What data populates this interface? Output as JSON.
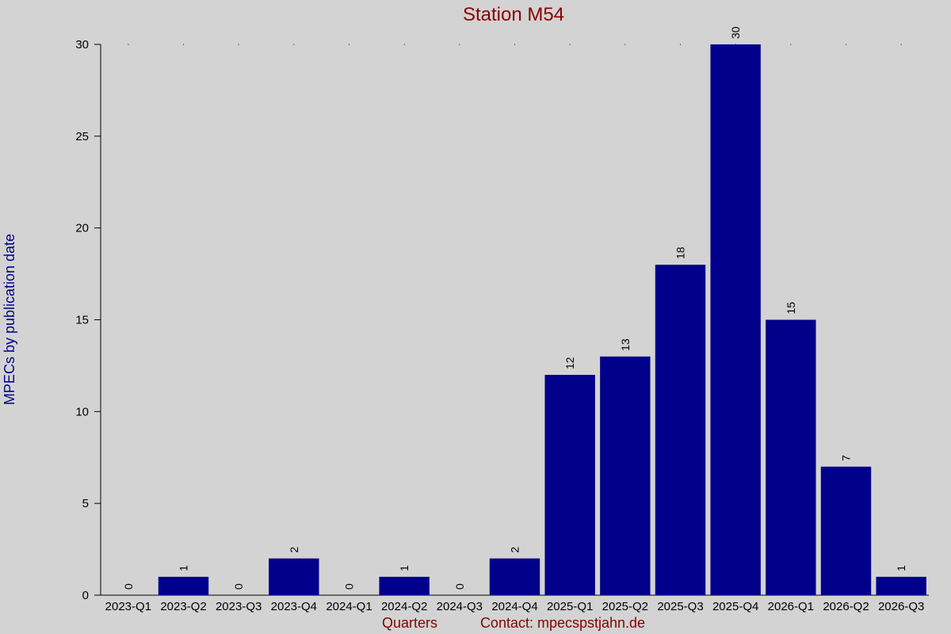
{
  "chart_data": {
    "type": "bar",
    "title": "Station M54",
    "xlabel": "Quarters",
    "ylabel": "MPECs by publication date",
    "contact": "Contact: mpecspstjahn.de",
    "categories": [
      "2023-Q1",
      "2023-Q2",
      "2023-Q3",
      "2023-Q4",
      "2024-Q1",
      "2024-Q2",
      "2024-Q3",
      "2024-Q4",
      "2025-Q1",
      "2025-Q2",
      "2025-Q3",
      "2025-Q4",
      "2026-Q1",
      "2026-Q2",
      "2026-Q3"
    ],
    "values": [
      0,
      1,
      0,
      2,
      0,
      1,
      0,
      2,
      12,
      13,
      18,
      30,
      15,
      7,
      1
    ],
    "ylim": [
      0,
      30
    ],
    "yticks": [
      0,
      5,
      10,
      15,
      20,
      25,
      30
    ],
    "grid": "dotted top line",
    "colors": {
      "background": "#d3d3d3",
      "bar": "#00008b",
      "title": "#8b0000",
      "ylabel": "#00008b",
      "xlabel": "#8b0000"
    }
  }
}
